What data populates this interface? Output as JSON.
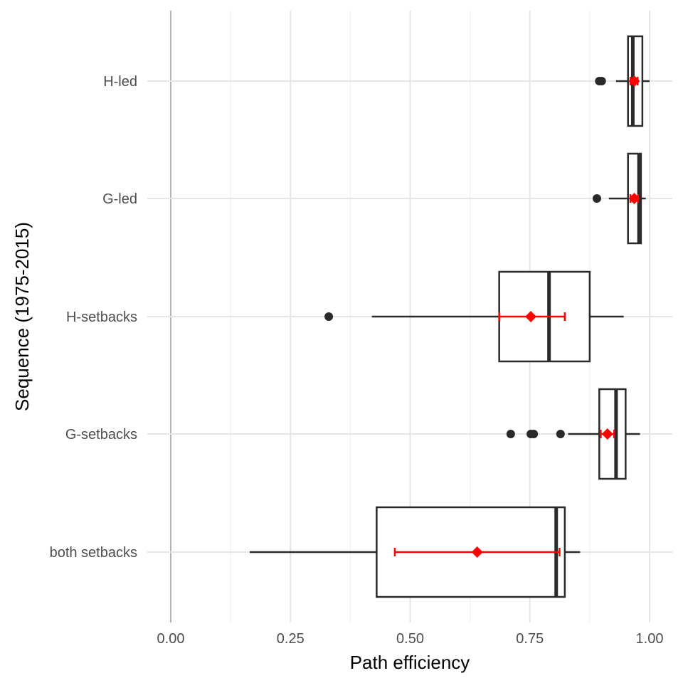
{
  "chart_data": {
    "type": "boxplot",
    "orientation": "horizontal",
    "title": "",
    "xlabel": "Path efficiency",
    "ylabel": "Sequence (1975-2015)",
    "xlim": [
      0,
      1
    ],
    "x_ticks": [
      "0.00",
      "0.25",
      "0.50",
      "0.75",
      "1.00"
    ],
    "x_tick_values": [
      0,
      0.25,
      0.5,
      0.75,
      1.0
    ],
    "grid": true,
    "legend": "none",
    "colors": {
      "box_outline": "#2a2a2a",
      "mean": "#ff0000",
      "grid": "#e6e6e6",
      "zero_line": "#b3b3b3"
    },
    "categories": [
      "H-led",
      "G-led",
      "H-setbacks",
      "G-setbacks",
      "both setbacks"
    ],
    "boxes": [
      {
        "category": "H-led",
        "whisker_low": 0.93,
        "q1": 0.955,
        "median": 0.965,
        "q3": 0.985,
        "whisker_high": 1.0,
        "outliers": [
          0.895,
          0.9
        ],
        "mean": 0.968,
        "mean_ci": [
          0.96,
          0.975
        ]
      },
      {
        "category": "G-led",
        "whisker_low": 0.915,
        "q1": 0.955,
        "median": 0.978,
        "q3": 0.982,
        "whisker_high": 0.992,
        "outliers": [
          0.89
        ],
        "mean": 0.968,
        "mean_ci": [
          0.96,
          0.976
        ]
      },
      {
        "category": "H-setbacks",
        "whisker_low": 0.42,
        "q1": 0.686,
        "median": 0.79,
        "q3": 0.875,
        "whisker_high": 0.946,
        "outliers": [
          0.33
        ],
        "mean": 0.752,
        "mean_ci": [
          0.686,
          0.823
        ]
      },
      {
        "category": "G-setbacks",
        "whisker_low": 0.83,
        "q1": 0.895,
        "median": 0.93,
        "q3": 0.95,
        "whisker_high": 0.98,
        "outliers": [
          0.71,
          0.752,
          0.758,
          0.814
        ],
        "mean": 0.912,
        "mean_ci": [
          0.898,
          0.926
        ]
      },
      {
        "category": "both setbacks",
        "whisker_low": 0.165,
        "q1": 0.43,
        "median": 0.805,
        "q3": 0.823,
        "whisker_high": 0.855,
        "outliers": [],
        "mean": 0.64,
        "mean_ci": [
          0.468,
          0.812
        ]
      }
    ]
  }
}
